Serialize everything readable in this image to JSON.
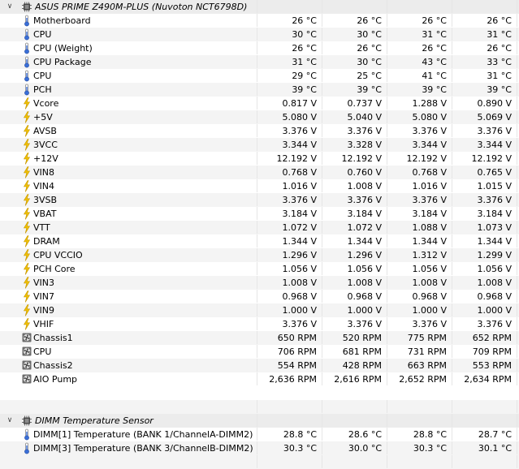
{
  "sections": [
    {
      "title": "ASUS PRIME Z490M-PLUS (Nuvoton NCT6798D)",
      "expanded": true,
      "rows": [
        {
          "type": "temp",
          "label": "Motherboard",
          "values": [
            "26 °C",
            "26 °C",
            "26 °C",
            "26 °C"
          ]
        },
        {
          "type": "temp",
          "label": "CPU",
          "values": [
            "30 °C",
            "30 °C",
            "31 °C",
            "31 °C"
          ]
        },
        {
          "type": "temp",
          "label": "CPU (Weight)",
          "values": [
            "26 °C",
            "26 °C",
            "26 °C",
            "26 °C"
          ]
        },
        {
          "type": "temp",
          "label": "CPU Package",
          "values": [
            "31 °C",
            "30 °C",
            "43 °C",
            "33 °C"
          ]
        },
        {
          "type": "temp",
          "label": "CPU",
          "values": [
            "29 °C",
            "25 °C",
            "41 °C",
            "31 °C"
          ]
        },
        {
          "type": "temp",
          "label": "PCH",
          "values": [
            "39 °C",
            "39 °C",
            "39 °C",
            "39 °C"
          ]
        },
        {
          "type": "volt",
          "label": "Vcore",
          "values": [
            "0.817 V",
            "0.737 V",
            "1.288 V",
            "0.890 V"
          ]
        },
        {
          "type": "volt",
          "label": "+5V",
          "values": [
            "5.080 V",
            "5.040 V",
            "5.080 V",
            "5.069 V"
          ]
        },
        {
          "type": "volt",
          "label": "AVSB",
          "values": [
            "3.376 V",
            "3.376 V",
            "3.376 V",
            "3.376 V"
          ]
        },
        {
          "type": "volt",
          "label": "3VCC",
          "values": [
            "3.344 V",
            "3.328 V",
            "3.344 V",
            "3.344 V"
          ]
        },
        {
          "type": "volt",
          "label": "+12V",
          "values": [
            "12.192 V",
            "12.192 V",
            "12.192 V",
            "12.192 V"
          ]
        },
        {
          "type": "volt",
          "label": "VIN8",
          "values": [
            "0.768 V",
            "0.760 V",
            "0.768 V",
            "0.765 V"
          ]
        },
        {
          "type": "volt",
          "label": "VIN4",
          "values": [
            "1.016 V",
            "1.008 V",
            "1.016 V",
            "1.015 V"
          ]
        },
        {
          "type": "volt",
          "label": "3VSB",
          "values": [
            "3.376 V",
            "3.376 V",
            "3.376 V",
            "3.376 V"
          ]
        },
        {
          "type": "volt",
          "label": "VBAT",
          "values": [
            "3.184 V",
            "3.184 V",
            "3.184 V",
            "3.184 V"
          ]
        },
        {
          "type": "volt",
          "label": "VTT",
          "values": [
            "1.072 V",
            "1.072 V",
            "1.088 V",
            "1.073 V"
          ]
        },
        {
          "type": "volt",
          "label": "DRAM",
          "values": [
            "1.344 V",
            "1.344 V",
            "1.344 V",
            "1.344 V"
          ]
        },
        {
          "type": "volt",
          "label": "CPU VCCIO",
          "values": [
            "1.296 V",
            "1.296 V",
            "1.312 V",
            "1.299 V"
          ]
        },
        {
          "type": "volt",
          "label": "PCH Core",
          "values": [
            "1.056 V",
            "1.056 V",
            "1.056 V",
            "1.056 V"
          ]
        },
        {
          "type": "volt",
          "label": "VIN3",
          "values": [
            "1.008 V",
            "1.008 V",
            "1.008 V",
            "1.008 V"
          ]
        },
        {
          "type": "volt",
          "label": "VIN7",
          "values": [
            "0.968 V",
            "0.968 V",
            "0.968 V",
            "0.968 V"
          ]
        },
        {
          "type": "volt",
          "label": "VIN9",
          "values": [
            "1.000 V",
            "1.000 V",
            "1.000 V",
            "1.000 V"
          ]
        },
        {
          "type": "volt",
          "label": "VHIF",
          "values": [
            "3.376 V",
            "3.376 V",
            "3.376 V",
            "3.376 V"
          ]
        },
        {
          "type": "fan",
          "label": "Chassis1",
          "values": [
            "650 RPM",
            "520 RPM",
            "775 RPM",
            "652 RPM"
          ]
        },
        {
          "type": "fan",
          "label": "CPU",
          "values": [
            "706 RPM",
            "681 RPM",
            "731 RPM",
            "709 RPM"
          ]
        },
        {
          "type": "fan",
          "label": "Chassis2",
          "values": [
            "554 RPM",
            "428 RPM",
            "663 RPM",
            "553 RPM"
          ]
        },
        {
          "type": "fan",
          "label": "AIO Pump",
          "values": [
            "2,636 RPM",
            "2,616 RPM",
            "2,652 RPM",
            "2,634 RPM"
          ]
        }
      ]
    },
    {
      "title": "DIMM Temperature Sensor",
      "expanded": true,
      "rows": [
        {
          "type": "temp",
          "label": "DIMM[1] Temperature (BANK 1/ChannelA-DIMM2)",
          "values": [
            "28.8 °C",
            "28.6 °C",
            "28.8 °C",
            "28.7 °C"
          ]
        },
        {
          "type": "temp",
          "label": "DIMM[3] Temperature (BANK 3/ChannelB-DIMM2)",
          "values": [
            "30.3 °C",
            "30.0 °C",
            "30.3 °C",
            "30.1 °C"
          ]
        }
      ]
    }
  ],
  "colors": {
    "row_alt": "#f4f4f4",
    "header_bg": "#ececec",
    "bolt": "#f2c200",
    "thermo": "#3a6fd8",
    "fan": "#555555"
  }
}
